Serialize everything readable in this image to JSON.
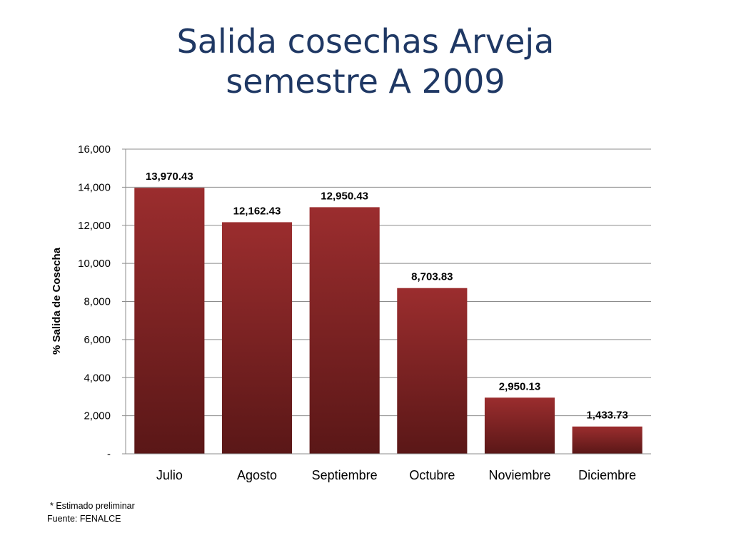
{
  "title_line1": "Salida cosechas Arveja",
  "title_line2": "semestre A 2009",
  "notes": {
    "estimate": "* Estimado preliminar",
    "source": "Fuente: FENALCE"
  },
  "colors": {
    "bar_top": "#9b2d2e",
    "bar_bottom": "#5a1717",
    "grid": "#8c8c8c",
    "title": "#1f3864"
  },
  "chart_data": {
    "type": "bar",
    "title": "",
    "xlabel": "",
    "ylabel": "% Salida de Cosecha",
    "categories": [
      "Julio",
      "Agosto",
      "Septiembre",
      "Octubre",
      "Noviembre",
      "Diciembre"
    ],
    "values": [
      13970.43,
      12162.43,
      12950.43,
      8703.83,
      2950.13,
      1433.73
    ],
    "value_labels": [
      "13,970.43",
      "12,162.43",
      "12,950.43",
      "8,703.83",
      "2,950.13",
      "1,433.73"
    ],
    "ylim": [
      0,
      16000
    ],
    "yticks": [
      0,
      2000,
      4000,
      6000,
      8000,
      10000,
      12000,
      14000,
      16000
    ],
    "ytick_labels": [
      "-",
      "2,000",
      "4,000",
      "6,000",
      "8,000",
      "10,000",
      "12,000",
      "14,000",
      "16,000"
    ],
    "grid": true,
    "legend": "none"
  }
}
